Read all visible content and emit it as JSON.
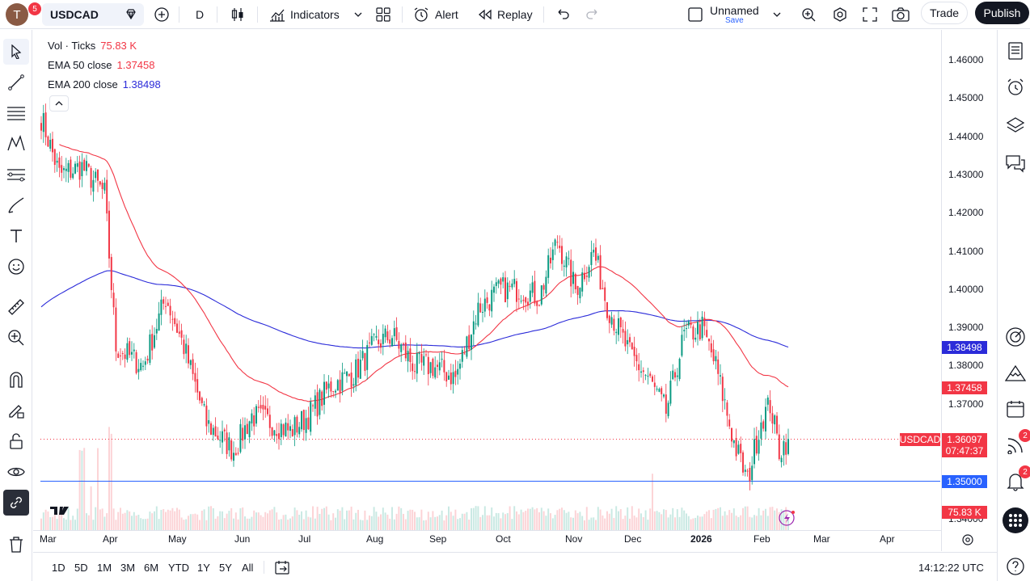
{
  "topbar": {
    "avatar_letter": "T",
    "avatar_badge": "5",
    "symbol": "USDCAD",
    "interval": "D",
    "indicators_label": "Indicators",
    "alert_label": "Alert",
    "replay_label": "Replay",
    "layout_name": "Unnamed",
    "layout_save": "Save",
    "trade_label": "Trade",
    "publish_label": "Publish"
  },
  "legend": {
    "vol_label": "Vol · Ticks",
    "vol_value": "75.83 K",
    "ema50_label": "EMA 50 close",
    "ema50_value": "1.37458",
    "ema200_label": "EMA 200 close",
    "ema200_value": "1.38498"
  },
  "price_scale": [
    "1.46000",
    "1.45000",
    "1.44000",
    "1.43000",
    "1.42000",
    "1.41000",
    "1.40000",
    "1.39000",
    "1.38000",
    "1.37000",
    "1.36000",
    "1.35000",
    "1.34000"
  ],
  "labels": {
    "ema200_tag": "1.38498",
    "ema50_tag": "1.37458",
    "symbol_tag": "USDCAD",
    "last_price": "1.36097",
    "countdown": "07:47:37",
    "hline_price": "1.35000",
    "volume_tag": "75.83 K"
  },
  "time_axis": [
    "Mar",
    "Apr",
    "May",
    "Jun",
    "Jul",
    "Aug",
    "Sep",
    "Oct",
    "Nov",
    "Dec",
    "2026",
    "Feb",
    "Mar",
    "Apr"
  ],
  "bottombar": {
    "ranges": [
      "1D",
      "5D",
      "1M",
      "3M",
      "6M",
      "YTD",
      "1Y",
      "5Y",
      "All"
    ],
    "clock": "14:12:22 UTC"
  },
  "right_badges": {
    "hotlist": "2",
    "notifications": "2"
  },
  "colors": {
    "up": "#089981",
    "down": "#f23645",
    "ema50": "#f23645",
    "ema200": "#2b2bd9",
    "hline": "#2962ff"
  },
  "chart_data": {
    "type": "candlestick",
    "symbol": "USDCAD",
    "interval": "D",
    "ylim": [
      1.34,
      1.465
    ],
    "last": 1.36097,
    "hline": 1.35,
    "ema50_last": 1.37458,
    "ema200_last": 1.38498,
    "close_path_anchors": [
      [
        0,
        1.445
      ],
      [
        8,
        1.43
      ],
      [
        18,
        1.432
      ],
      [
        28,
        1.425
      ],
      [
        33,
        1.385
      ],
      [
        45,
        1.38
      ],
      [
        55,
        1.398
      ],
      [
        63,
        1.385
      ],
      [
        73,
        1.365
      ],
      [
        85,
        1.358
      ],
      [
        93,
        1.367
      ],
      [
        103,
        1.365
      ],
      [
        110,
        1.363
      ],
      [
        118,
        1.367
      ],
      [
        128,
        1.375
      ],
      [
        138,
        1.378
      ],
      [
        148,
        1.386
      ],
      [
        155,
        1.388
      ],
      [
        165,
        1.38
      ],
      [
        173,
        1.38
      ],
      [
        183,
        1.377
      ],
      [
        193,
        1.395
      ],
      [
        203,
        1.4
      ],
      [
        212,
        1.4
      ],
      [
        220,
        1.398
      ],
      [
        228,
        1.413
      ],
      [
        236,
        1.4
      ],
      [
        244,
        1.41
      ],
      [
        250,
        1.396
      ],
      [
        260,
        1.383
      ],
      [
        268,
        1.377
      ],
      [
        276,
        1.368
      ],
      [
        284,
        1.388
      ],
      [
        292,
        1.39
      ],
      [
        298,
        1.38
      ],
      [
        306,
        1.36
      ],
      [
        312,
        1.35
      ],
      [
        318,
        1.366
      ],
      [
        322,
        1.37
      ],
      [
        326,
        1.358
      ],
      [
        330,
        1.361
      ]
    ],
    "volume_spikes": [
      17,
      18,
      19,
      22,
      25,
      30,
      31,
      270
    ]
  }
}
